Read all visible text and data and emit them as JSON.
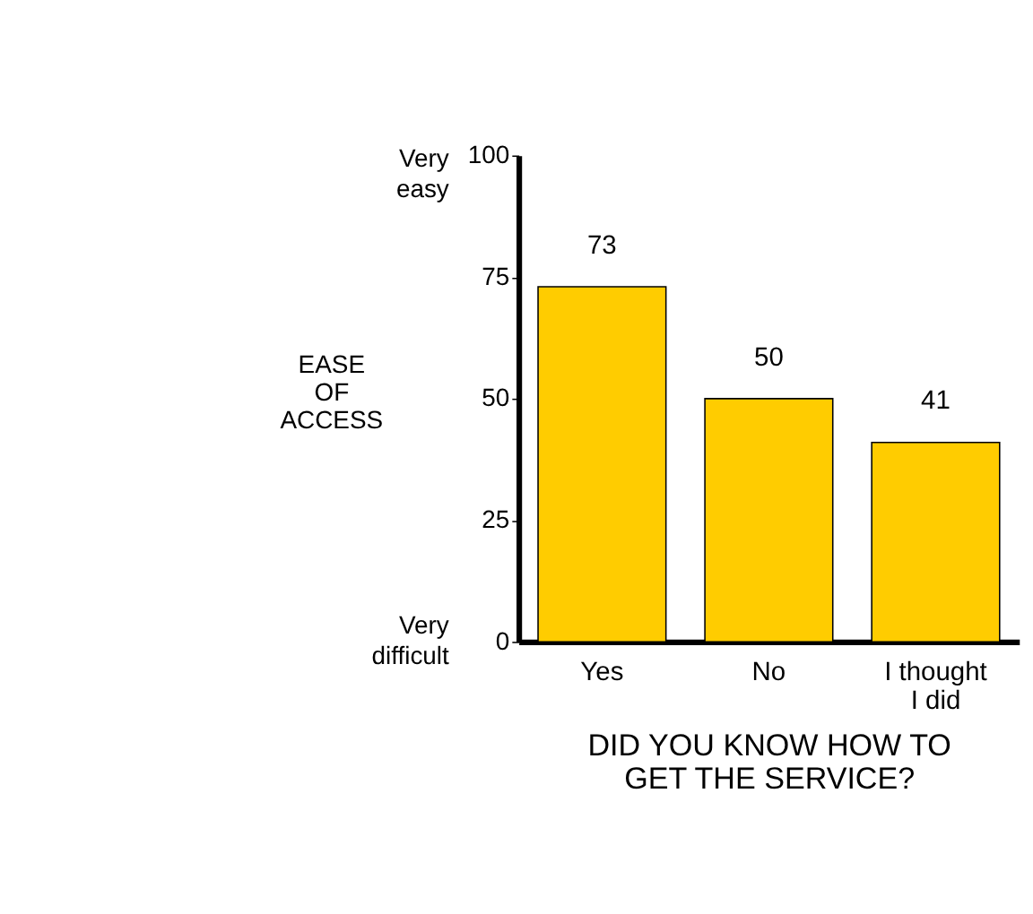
{
  "chart_data": {
    "type": "bar",
    "ylabel": "EASE OF ACCESS",
    "xlabel": "DID YOU KNOW HOW TO GET THE SERVICE?",
    "categories": [
      "Yes",
      "No",
      "I thought I did"
    ],
    "values": [
      73,
      50,
      41
    ],
    "color": "#ffcc00",
    "ylim": [
      0,
      100
    ],
    "yticks": [
      0,
      25,
      50,
      75,
      100
    ],
    "grid": false,
    "data_labels": true,
    "annotations": [
      "Very easy",
      "Very difficult"
    ]
  }
}
